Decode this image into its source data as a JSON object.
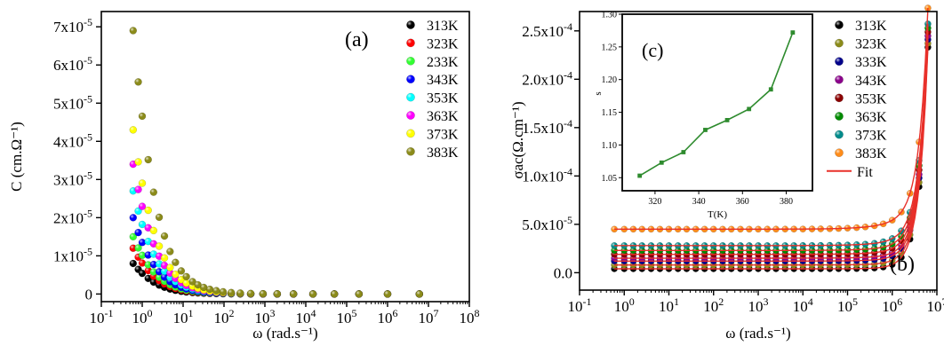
{
  "chart_data": [
    {
      "type": "scatter",
      "panel_label": "(a)",
      "xlabel": "ω (rad.s⁻¹)",
      "ylabel": "C (cm.Ω⁻¹)",
      "x_scale": "log",
      "xlim": [
        0.1,
        100000000
      ],
      "ylim": [
        -2e-06,
        7.4e-05
      ],
      "xticks": [
        {
          "v": 0.1,
          "m": "10",
          "e": "-1"
        },
        {
          "v": 1,
          "m": "10",
          "e": "0"
        },
        {
          "v": 10,
          "m": "10",
          "e": "1"
        },
        {
          "v": 100,
          "m": "10",
          "e": "2"
        },
        {
          "v": 1000,
          "m": "10",
          "e": "3"
        },
        {
          "v": 10000,
          "m": "10",
          "e": "4"
        },
        {
          "v": 100000,
          "m": "10",
          "e": "5"
        },
        {
          "v": 1000000,
          "m": "10",
          "e": "6"
        },
        {
          "v": 10000000,
          "m": "10",
          "e": "7"
        },
        {
          "v": 100000000,
          "m": "10",
          "e": "8"
        }
      ],
      "yticks": [
        {
          "v": 0,
          "m": "0",
          "e": ""
        },
        {
          "v": 1e-05,
          "m": "1x10",
          "e": "-5"
        },
        {
          "v": 2e-05,
          "m": "2x10",
          "e": "-5"
        },
        {
          "v": 3e-05,
          "m": "3x10",
          "e": "-5"
        },
        {
          "v": 4e-05,
          "m": "4x10",
          "e": "-5"
        },
        {
          "v": 5e-05,
          "m": "5x10",
          "e": "-5"
        },
        {
          "v": 6e-05,
          "m": "6x10",
          "e": "-5"
        },
        {
          "v": 7e-05,
          "m": "7x10",
          "e": "-5"
        }
      ],
      "x": [
        0.6,
        0.8,
        1.0,
        1.4,
        1.9,
        2.6,
        3.5,
        4.8,
        6.5,
        9,
        12,
        17,
        23,
        32,
        45,
        65,
        95,
        150,
        250,
        450,
        900,
        2000,
        5000,
        15000,
        50000,
        200000,
        1000000,
        6000000
      ],
      "legend_position": "top-right",
      "series": [
        {
          "name": "313K",
          "color": "#000000",
          "values": [
            8e-06,
            6.44e-06,
            5.4e-06,
            4.08e-06,
            3.1e-06,
            2.33e-06,
            1.76e-06,
            1.29e-06,
            9.6e-07,
            7e-07,
            5.3e-07,
            3.8e-07,
            2.8e-07,
            2e-07,
            1.4e-07,
            1e-07,
            7e-08,
            4e-08,
            3e-08,
            2e-08,
            1e-08,
            0,
            0,
            0,
            0,
            0,
            0,
            0
          ]
        },
        {
          "name": "323K",
          "color": "#ff0000",
          "values": [
            1.2e-05,
            9.66e-06,
            8.1e-06,
            6.12e-06,
            4.64e-06,
            3.5e-06,
            2.64e-06,
            1.94e-06,
            1.44e-06,
            1.05e-06,
            7.9e-07,
            5.6e-07,
            4.2e-07,
            3e-07,
            2.1e-07,
            1.5e-07,
            1e-07,
            7e-08,
            4e-08,
            2e-08,
            1e-08,
            1e-08,
            0,
            0,
            0,
            0,
            0,
            0
          ]
        },
        {
          "name": "233K",
          "color": "#33ff33",
          "values": [
            1.5e-05,
            1.207e-05,
            1.013e-05,
            7.65e-06,
            5.8e-06,
            4.37e-06,
            3.3e-06,
            2.42e-06,
            1.8e-06,
            1.31e-06,
            9.9e-07,
            7.1e-07,
            5.2e-07,
            3.8e-07,
            2.7e-07,
            1.9e-07,
            1.3e-07,
            8e-08,
            5e-08,
            3e-08,
            1e-08,
            1e-08,
            0,
            0,
            0,
            0,
            0,
            0
          ]
        },
        {
          "name": "343K",
          "color": "#0000ff",
          "values": [
            2e-05,
            1.61e-05,
            1.35e-05,
            1.02e-05,
            7.73e-06,
            5.83e-06,
            4.4e-06,
            3.23e-06,
            2.4e-06,
            1.75e-06,
            1.32e-06,
            9.4e-07,
            7e-07,
            5e-07,
            3.6e-07,
            2.5e-07,
            1.7e-07,
            1.1e-07,
            7e-08,
            4e-08,
            2e-08,
            1e-08,
            0,
            0,
            0,
            0,
            0,
            0
          ]
        },
        {
          "name": "353K",
          "color": "#00ffff",
          "values": [
            2.7e-05,
            2.173e-05,
            1.823e-05,
            1.377e-05,
            1.044e-05,
            7.87e-06,
            5.94e-06,
            4.35e-06,
            3.24e-06,
            2.36e-06,
            1.78e-06,
            1.27e-06,
            9.4e-07,
            6.8e-07,
            4.8e-07,
            3.4e-07,
            2.3e-07,
            1.5e-07,
            9e-08,
            5e-08,
            2e-08,
            1e-08,
            0,
            0,
            0,
            0,
            0,
            0
          ]
        },
        {
          "name": "363K",
          "color": "#ff00ff",
          "values": [
            3.4e-05,
            2.737e-05,
            2.295e-05,
            1.734e-05,
            1.314e-05,
            9.91e-06,
            7.48e-06,
            5.48e-06,
            4.08e-06,
            2.97e-06,
            2.24e-06,
            1.6e-06,
            1.18e-06,
            8.5e-07,
            6.1e-07,
            4.2e-07,
            2.9e-07,
            1.9e-07,
            1.2e-07,
            6e-08,
            3e-08,
            1e-08,
            0,
            0,
            0,
            0,
            0,
            0
          ]
        },
        {
          "name": "373K",
          "color": "#ffff00",
          "values": [
            4.3e-05,
            3.462e-05,
            2.903e-05,
            2.193e-05,
            1.662e-05,
            1.253e-05,
            9.46e-06,
            6.93e-06,
            5.16e-06,
            3.76e-06,
            2.84e-06,
            2.02e-06,
            1.49e-06,
            1.08e-06,
            7.7e-07,
            5.4e-07,
            3.7e-07,
            2.4e-07,
            1.5e-07,
            8e-08,
            4e-08,
            2e-08,
            1e-08,
            0,
            0,
            0,
            0,
            0
          ]
        },
        {
          "name": "383K",
          "color": "#8b8b1a",
          "values": [
            6.9e-05,
            5.555e-05,
            4.658e-05,
            3.519e-05,
            2.667e-05,
            2.011e-05,
            1.518e-05,
            1.112e-05,
            8.28e-06,
            6.04e-06,
            4.55e-06,
            3.24e-06,
            2.4e-06,
            1.73e-06,
            1.23e-06,
            8.7e-07,
            5.9e-07,
            3.8e-07,
            2.4e-07,
            1.4e-07,
            7e-08,
            3e-08,
            1e-08,
            0,
            0,
            0,
            0,
            0
          ]
        }
      ]
    },
    {
      "type": "scatter",
      "panel_label": "(b)",
      "xlabel": "ω (rad.s⁻¹)",
      "ylabel": "σac(Ω.cm⁻¹)",
      "x_scale": "log",
      "xlim": [
        0.1,
        10000000
      ],
      "ylim": [
        -1.8e-05,
        0.00027
      ],
      "xticks": [
        {
          "v": 0.1,
          "m": "10",
          "e": "-1"
        },
        {
          "v": 1,
          "m": "10",
          "e": "0"
        },
        {
          "v": 10,
          "m": "10",
          "e": "1"
        },
        {
          "v": 100,
          "m": "10",
          "e": "2"
        },
        {
          "v": 1000,
          "m": "10",
          "e": "3"
        },
        {
          "v": 10000,
          "m": "10",
          "e": "4"
        },
        {
          "v": 100000,
          "m": "10",
          "e": "5"
        },
        {
          "v": 1000000,
          "m": "10",
          "e": "6"
        },
        {
          "v": 10000000,
          "m": "10",
          "e": "7"
        }
      ],
      "yticks": [
        {
          "v": 0,
          "m": "0.0",
          "e": ""
        },
        {
          "v": 5e-05,
          "m": "5.0x10",
          "e": "-5"
        },
        {
          "v": 0.0001,
          "m": "1.0x10",
          "e": "-4"
        },
        {
          "v": 0.00015,
          "m": "1.5x10",
          "e": "-4"
        },
        {
          "v": 0.0002,
          "m": "2.0x10",
          "e": "-4"
        },
        {
          "v": 0.00025,
          "m": "2.5x10",
          "e": "-4"
        }
      ],
      "x": [
        0.6,
        1,
        1.6,
        2.5,
        4,
        6.3,
        10,
        16,
        25,
        40,
        63,
        100,
        160,
        250,
        400,
        630,
        1000,
        1600,
        2500,
        4000,
        6300,
        10000,
        16000,
        25000,
        40000,
        63000,
        100000,
        160000,
        250000,
        400000,
        630000,
        1000000,
        1600000,
        2500000,
        4000000,
        6300000
      ],
      "legend_position": "top-right",
      "fit_label": "Fit",
      "fit_color": "#e8302a",
      "series": [
        {
          "name": "313K",
          "color": "#000000",
          "dc": 4e-06,
          "end": 0.000232
        },
        {
          "name": "323K",
          "color": "#8b8b1a",
          "dc": 8e-06,
          "end": 0.000235
        },
        {
          "name": "333K",
          "color": "#00008b",
          "dc": 1.2e-05,
          "end": 0.000238
        },
        {
          "name": "343K",
          "color": "#8b008b",
          "dc": 1.5e-05,
          "end": 0.000241
        },
        {
          "name": "353K",
          "color": "#8b0000",
          "dc": 1.9e-05,
          "end": 0.000244
        },
        {
          "name": "363K",
          "color": "#008b00",
          "dc": 2.3e-05,
          "end": 0.000247
        },
        {
          "name": "373K",
          "color": "#008b8b",
          "dc": 2.8e-05,
          "end": 0.00025
        },
        {
          "name": "383K",
          "color": "#ff8c1a",
          "dc": 4.5e-05,
          "end": 0.000262
        }
      ]
    },
    {
      "type": "line",
      "panel_label": "(c)",
      "xlabel": "T(K)",
      "ylabel": "s",
      "xlim": [
        305,
        392
      ],
      "ylim": [
        1.03,
        1.3
      ],
      "xticks": [
        {
          "v": 320,
          "m": "320",
          "e": ""
        },
        {
          "v": 340,
          "m": "340",
          "e": ""
        },
        {
          "v": 360,
          "m": "360",
          "e": ""
        },
        {
          "v": 380,
          "m": "380",
          "e": ""
        }
      ],
      "yticks": [
        {
          "v": 1.05,
          "m": "1.05",
          "e": ""
        },
        {
          "v": 1.1,
          "m": "1.10",
          "e": ""
        },
        {
          "v": 1.15,
          "m": "1.15",
          "e": ""
        },
        {
          "v": 1.2,
          "m": "1.20",
          "e": ""
        },
        {
          "v": 1.25,
          "m": "1.25",
          "e": ""
        },
        {
          "v": 1.3,
          "m": "1.30",
          "e": ""
        }
      ],
      "line_color": "#2e8b2e",
      "x": [
        313,
        323,
        333,
        343,
        353,
        363,
        373,
        383
      ],
      "values": [
        1.053,
        1.073,
        1.089,
        1.123,
        1.138,
        1.155,
        1.185,
        1.272
      ]
    }
  ]
}
